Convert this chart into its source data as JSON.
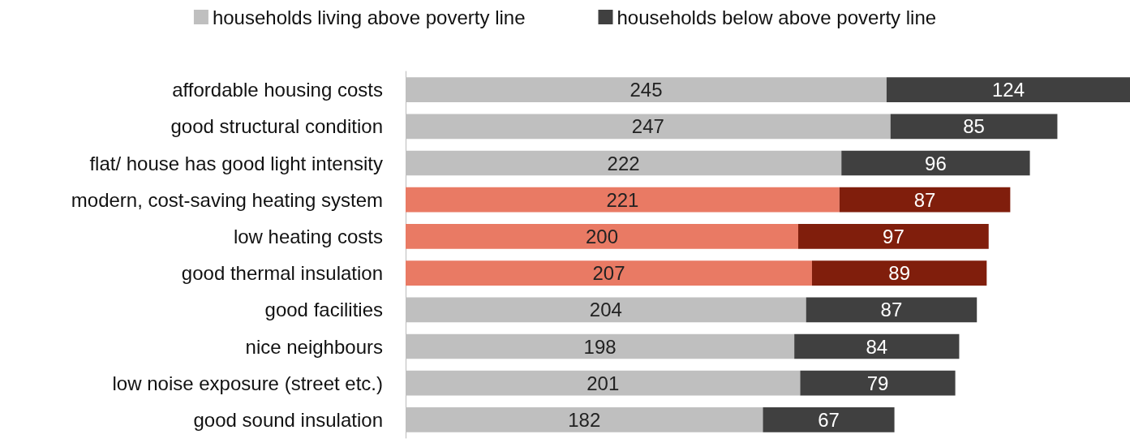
{
  "chart_data": {
    "type": "bar",
    "orientation": "horizontal",
    "stacked": true,
    "data_labels": true,
    "legend": "top",
    "categories": [
      "affordable housing costs",
      "good structural condition",
      "flat/ house has good light intensity",
      "modern, cost-saving heating system",
      "low heating costs",
      "good thermal insulation",
      "good facilities",
      "nice neighbours",
      "low noise exposure (street etc.)",
      "good sound insulation"
    ],
    "series": [
      {
        "name": "households living above poverty line",
        "color": "#bfbfbf",
        "colors": [
          "#bfbfbf",
          "#bfbfbf",
          "#bfbfbf",
          "#e97a64",
          "#e97a64",
          "#e97a64",
          "#bfbfbf",
          "#bfbfbf",
          "#bfbfbf",
          "#bfbfbf"
        ],
        "values": [
          245,
          247,
          222,
          221,
          200,
          207,
          204,
          198,
          201,
          182
        ]
      },
      {
        "name": "households below above poverty line",
        "color": "#404040",
        "colors": [
          "#404040",
          "#404040",
          "#404040",
          "#801e0c",
          "#801e0c",
          "#801e0c",
          "#404040",
          "#404040",
          "#404040",
          "#404040"
        ],
        "values": [
          124,
          85,
          96,
          87,
          97,
          89,
          87,
          84,
          79,
          67
        ]
      }
    ]
  }
}
